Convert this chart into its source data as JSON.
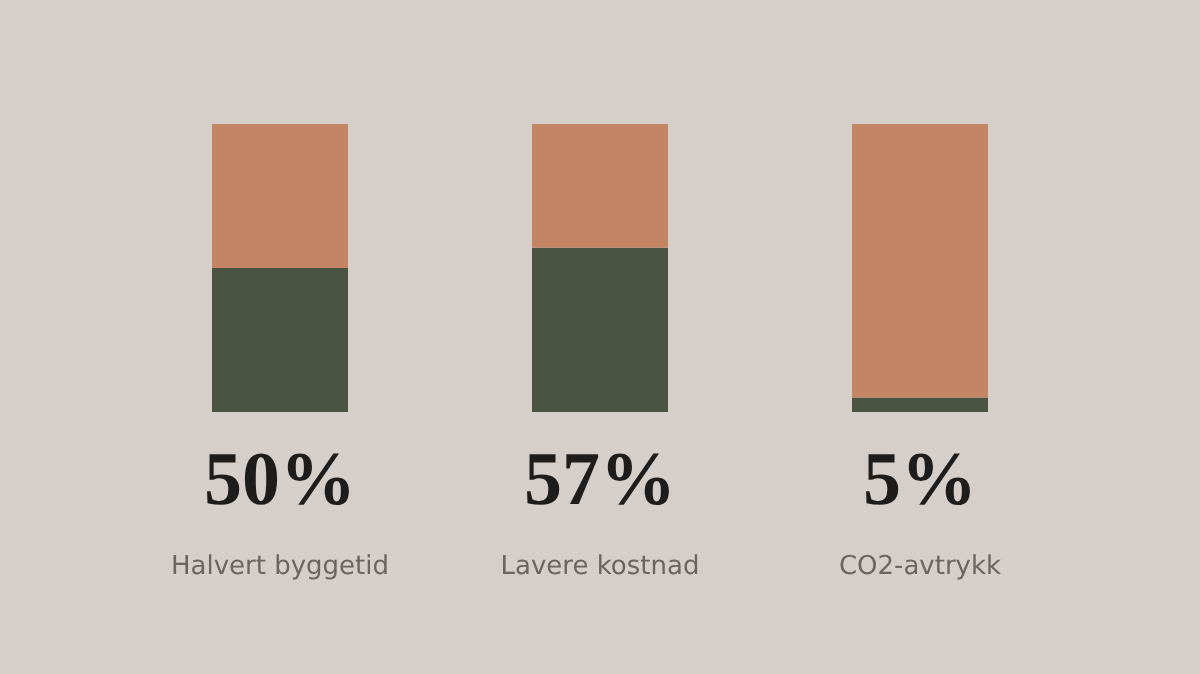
{
  "chart_data": {
    "type": "bar",
    "stacked": true,
    "categories": [
      "Halvert byggetid",
      "Lavere kostnad",
      "CO2-avtrykk"
    ],
    "series": [
      {
        "color": "#4a5443",
        "values": [
          50,
          57,
          5
        ],
        "value_labels": [
          "50%",
          "57%",
          "5%"
        ]
      },
      {
        "color": "#c48565",
        "values": [
          50,
          43,
          95
        ]
      }
    ]
  }
}
